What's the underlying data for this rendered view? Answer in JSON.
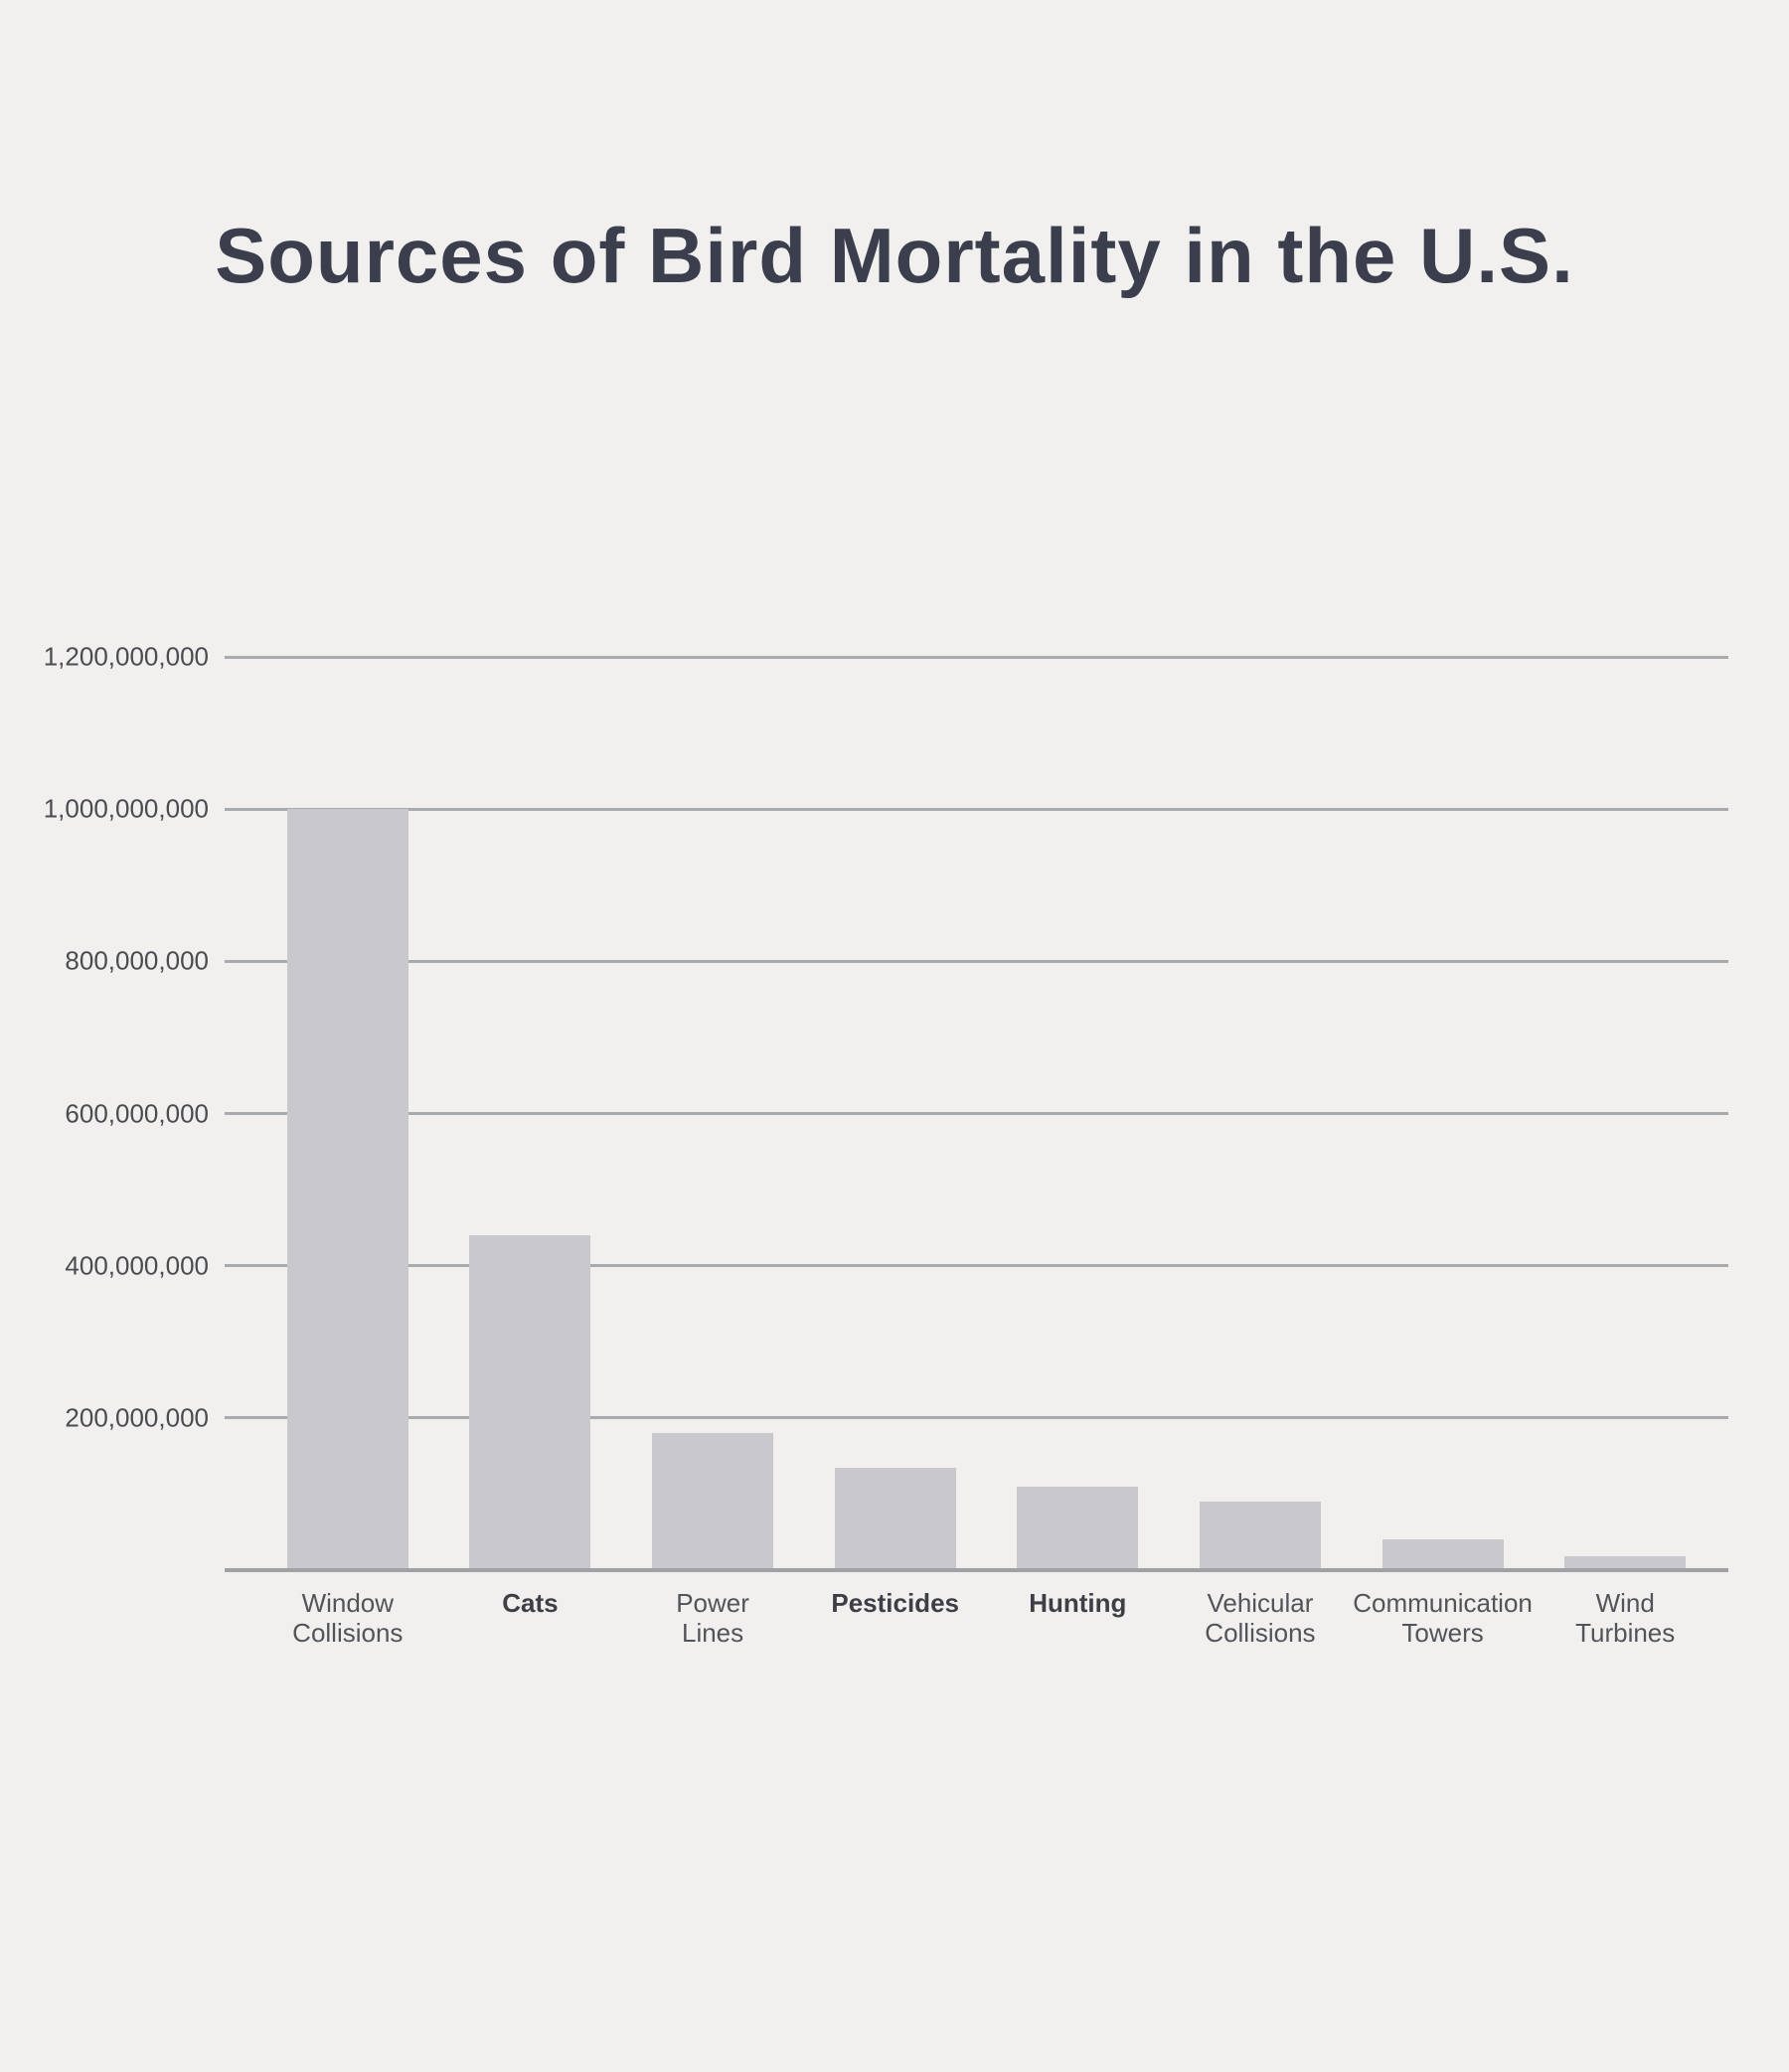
{
  "title": "Sources of Bird Mortality in the U.S.",
  "colors": {
    "background": "#f1f0ee",
    "bar_fill": "#c9c9cd",
    "gridline": "#a9aaad",
    "axis_line": "#a0a1a5",
    "title_text": "#3a3e4d",
    "ytick_text": "#4b4b52",
    "xtick_text": "#53535a",
    "xtick_text_bold": "#3e3e46"
  },
  "chart_data": {
    "type": "bar",
    "title": "Sources of Bird Mortality in the U.S.",
    "xlabel": "",
    "ylabel": "",
    "ylim": [
      0,
      1200000000
    ],
    "grid": "horizontal-only",
    "legend": "none",
    "yticks": [
      200000000,
      400000000,
      600000000,
      800000000,
      1000000000,
      1200000000
    ],
    "ytick_labels": [
      "200,000,000",
      "400,000,000",
      "600,000,000",
      "800,000,000",
      "1,000,000,000",
      "1,200,000,000"
    ],
    "categories": [
      {
        "label": "Window Collisions",
        "lines": [
          "Window",
          "Collisions"
        ],
        "bold": false
      },
      {
        "label": "Cats",
        "lines": [
          "Cats"
        ],
        "bold": true
      },
      {
        "label": "Power Lines",
        "lines": [
          "Power",
          "Lines"
        ],
        "bold": false
      },
      {
        "label": "Pesticides",
        "lines": [
          "Pesticides"
        ],
        "bold": true
      },
      {
        "label": "Hunting",
        "lines": [
          "Hunting"
        ],
        "bold": true
      },
      {
        "label": "Vehicular Collisions",
        "lines": [
          "Vehicular",
          "Collisions"
        ],
        "bold": false
      },
      {
        "label": "Communication Towers",
        "lines": [
          "Communication",
          "Towers"
        ],
        "bold": false
      },
      {
        "label": "Wind Turbines",
        "lines": [
          "Wind",
          "Turbines"
        ],
        "bold": false
      }
    ],
    "values": [
      1000000000,
      440000000,
      180000000,
      135000000,
      110000000,
      90000000,
      40000000,
      18000000
    ]
  }
}
